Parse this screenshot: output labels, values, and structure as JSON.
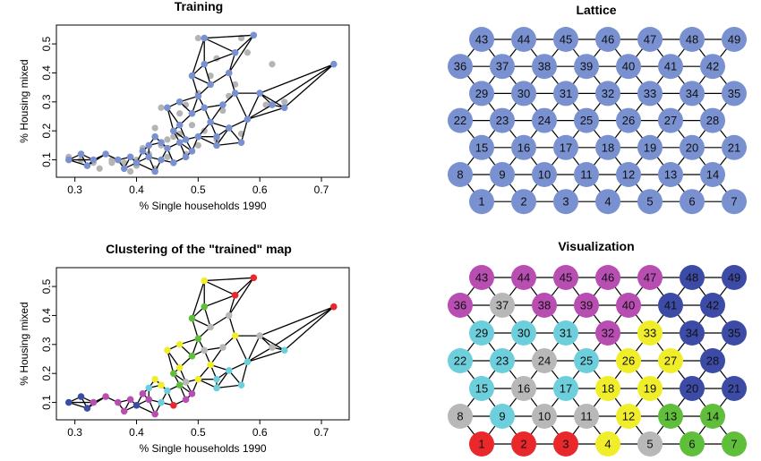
{
  "chart_data": [
    {
      "id": "training",
      "type": "scatter",
      "title": "Training",
      "xlabel": "% Single households 1990",
      "ylabel": "% Housing mixed",
      "xlim": [
        0.27,
        0.745
      ],
      "ylim": [
        0.04,
        0.565
      ],
      "xticks": [
        0.3,
        0.4,
        0.5,
        0.6,
        0.7
      ],
      "xtick_labels": [
        "0.3",
        "0.4",
        "0.5",
        "0.6",
        "0.7"
      ],
      "yticks": [
        0.1,
        0.2,
        0.3,
        0.4,
        0.5
      ],
      "ytick_labels": [
        "0.1",
        "0.2",
        "0.3",
        "0.4",
        "0.5"
      ],
      "data_points": [
        [
          0.29,
          0.11
        ],
        [
          0.31,
          0.1
        ],
        [
          0.33,
          0.09
        ],
        [
          0.34,
          0.07
        ],
        [
          0.36,
          0.1
        ],
        [
          0.38,
          0.09
        ],
        [
          0.39,
          0.06
        ],
        [
          0.4,
          0.1
        ],
        [
          0.41,
          0.14
        ],
        [
          0.42,
          0.12
        ],
        [
          0.43,
          0.07
        ],
        [
          0.44,
          0.15
        ],
        [
          0.45,
          0.11
        ],
        [
          0.46,
          0.18
        ],
        [
          0.47,
          0.26
        ],
        [
          0.47,
          0.19
        ],
        [
          0.48,
          0.12
        ],
        [
          0.48,
          0.29
        ],
        [
          0.49,
          0.22
        ],
        [
          0.5,
          0.15
        ],
        [
          0.5,
          0.33
        ],
        [
          0.51,
          0.2
        ],
        [
          0.52,
          0.39
        ],
        [
          0.53,
          0.17
        ],
        [
          0.54,
          0.27
        ],
        [
          0.55,
          0.32
        ],
        [
          0.56,
          0.36
        ],
        [
          0.57,
          0.19
        ],
        [
          0.5,
          0.52
        ],
        [
          0.57,
          0.52
        ],
        [
          0.58,
          0.47
        ],
        [
          0.62,
          0.43
        ],
        [
          0.61,
          0.29
        ],
        [
          0.64,
          0.3
        ],
        [
          0.44,
          0.28
        ],
        [
          0.43,
          0.21
        ],
        [
          0.45,
          0.17
        ],
        [
          0.4,
          0.08
        ],
        [
          0.36,
          0.09
        ],
        [
          0.53,
          0.45
        ]
      ],
      "node_points": [
        [
          0.29,
          0.1
        ],
        [
          0.31,
          0.12
        ],
        [
          0.32,
          0.08
        ],
        [
          0.33,
          0.1
        ],
        [
          0.35,
          0.12
        ],
        [
          0.37,
          0.1
        ],
        [
          0.38,
          0.07
        ],
        [
          0.39,
          0.11
        ],
        [
          0.4,
          0.09
        ],
        [
          0.41,
          0.13
        ],
        [
          0.42,
          0.11
        ],
        [
          0.43,
          0.06
        ],
        [
          0.44,
          0.1
        ],
        [
          0.44,
          0.16
        ],
        [
          0.45,
          0.14
        ],
        [
          0.46,
          0.2
        ],
        [
          0.46,
          0.09
        ],
        [
          0.47,
          0.3
        ],
        [
          0.47,
          0.22
        ],
        [
          0.48,
          0.17
        ],
        [
          0.48,
          0.11
        ],
        [
          0.49,
          0.26
        ],
        [
          0.49,
          0.13
        ],
        [
          0.5,
          0.32
        ],
        [
          0.5,
          0.18
        ],
        [
          0.51,
          0.52
        ],
        [
          0.51,
          0.43
        ],
        [
          0.52,
          0.36
        ],
        [
          0.52,
          0.23
        ],
        [
          0.53,
          0.15
        ],
        [
          0.54,
          0.29
        ],
        [
          0.55,
          0.4
        ],
        [
          0.55,
          0.21
        ],
        [
          0.56,
          0.33
        ],
        [
          0.57,
          0.16
        ],
        [
          0.58,
          0.24
        ],
        [
          0.59,
          0.53
        ],
        [
          0.6,
          0.33
        ],
        [
          0.62,
          0.29
        ],
        [
          0.64,
          0.28
        ],
        [
          0.72,
          0.43
        ],
        [
          0.43,
          0.18
        ],
        [
          0.45,
          0.28
        ],
        [
          0.53,
          0.18
        ],
        [
          0.56,
          0.47
        ],
        [
          0.47,
          0.16
        ],
        [
          0.51,
          0.28
        ],
        [
          0.49,
          0.39
        ],
        [
          0.42,
          0.15
        ]
      ]
    },
    {
      "id": "lattice",
      "type": "other",
      "title": "Lattice",
      "rows": 7,
      "cols": 7,
      "labels": [
        [
          43,
          44,
          45,
          46,
          47,
          48,
          49
        ],
        [
          36,
          37,
          38,
          39,
          40,
          41,
          42
        ],
        [
          29,
          30,
          31,
          32,
          33,
          34,
          35
        ],
        [
          22,
          23,
          24,
          25,
          26,
          27,
          28
        ],
        [
          15,
          16,
          17,
          18,
          19,
          20,
          21
        ],
        [
          8,
          9,
          10,
          11,
          12,
          13,
          14
        ],
        [
          1,
          2,
          3,
          4,
          5,
          6,
          7
        ]
      ]
    },
    {
      "id": "clustered-map",
      "type": "scatter",
      "title": "Clustering of the \"trained\" map",
      "xlabel": "% Single households 1990",
      "ylabel": "% Housing mixed",
      "xlim": [
        0.27,
        0.745
      ],
      "ylim": [
        0.04,
        0.565
      ],
      "xticks": [
        0.3,
        0.4,
        0.5,
        0.6,
        0.7
      ],
      "xtick_labels": [
        "0.3",
        "0.4",
        "0.5",
        "0.6",
        "0.7"
      ],
      "yticks": [
        0.1,
        0.2,
        0.3,
        0.4,
        0.5
      ],
      "ytick_labels": [
        "0.1",
        "0.2",
        "0.3",
        "0.4",
        "0.5"
      ]
    },
    {
      "id": "visualization",
      "type": "other",
      "title": "Visualization",
      "rows": 7,
      "cols": 7,
      "labels": [
        [
          43,
          44,
          45,
          46,
          47,
          48,
          49
        ],
        [
          36,
          37,
          38,
          39,
          40,
          41,
          42
        ],
        [
          29,
          30,
          31,
          32,
          33,
          34,
          35
        ],
        [
          22,
          23,
          24,
          25,
          26,
          27,
          28
        ],
        [
          15,
          16,
          17,
          18,
          19,
          20,
          21
        ],
        [
          8,
          9,
          10,
          11,
          12,
          13,
          14
        ],
        [
          1,
          2,
          3,
          4,
          5,
          6,
          7
        ]
      ],
      "cluster_of_node": {
        "1": "red",
        "2": "red",
        "3": "red",
        "4": "yellow",
        "5": "gray",
        "6": "green",
        "7": "green",
        "8": "gray",
        "9": "cyan",
        "10": "gray",
        "11": "gray",
        "12": "yellow",
        "13": "green",
        "14": "green",
        "15": "cyan",
        "16": "gray",
        "17": "cyan",
        "18": "yellow",
        "19": "yellow",
        "20": "navy",
        "21": "navy",
        "22": "cyan",
        "23": "cyan",
        "24": "gray",
        "25": "cyan",
        "26": "yellow",
        "27": "yellow",
        "28": "navy",
        "29": "cyan",
        "30": "cyan",
        "31": "cyan",
        "32": "magenta",
        "33": "yellow",
        "34": "navy",
        "35": "navy",
        "36": "magenta",
        "37": "gray",
        "38": "magenta",
        "39": "magenta",
        "40": "magenta",
        "41": "navy",
        "42": "navy",
        "43": "magenta",
        "44": "magenta",
        "45": "magenta",
        "46": "magenta",
        "47": "magenta",
        "48": "navy",
        "49": "navy"
      }
    }
  ],
  "colors": {
    "node_blue": "#7991d1",
    "data_gray": "#b4b4b4",
    "edge": "#000000",
    "clusters": {
      "red": "#e8282a",
      "yellow": "#f0ee2a",
      "gray": "#b8b8b8",
      "green": "#5fbf3a",
      "cyan": "#6ccfdb",
      "navy": "#3c4ba6",
      "magenta": "#b84db2"
    }
  }
}
